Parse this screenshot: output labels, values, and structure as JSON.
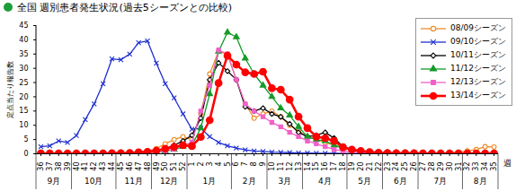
{
  "chart_data": {
    "type": "line",
    "title": "全国 週別患者発生状況(過去5シーズンとの比較)",
    "y_label": "定点当たり報告数",
    "x_label": "週",
    "categories": [
      "36",
      "37",
      "38",
      "39",
      "40",
      "41",
      "42",
      "43",
      "44",
      "45",
      "46",
      "47",
      "48",
      "49",
      "50",
      "51",
      "52",
      "1",
      "2",
      "3",
      "4",
      "5",
      "6",
      "7",
      "8",
      "9",
      "10",
      "11",
      "12",
      "13",
      "14",
      "15",
      "16",
      "17",
      "18",
      "19",
      "20",
      "21",
      "22",
      "23",
      "24",
      "25",
      "26",
      "27",
      "28",
      "29",
      "30",
      "31",
      "32",
      "33",
      "34",
      "35"
    ],
    "x_groups": [
      "9月",
      "9月",
      "9月",
      "9月",
      "10月",
      "10月",
      "10月",
      "10月",
      "10月",
      "11月",
      "11月",
      "11月",
      "11月",
      "12月",
      "12月",
      "12月",
      "12月",
      "1月",
      "1月",
      "1月",
      "1月",
      "1月",
      "2月",
      "2月",
      "2月",
      "2月",
      "3月",
      "3月",
      "3月",
      "3月",
      "4月",
      "4月",
      "4月",
      "4月",
      "4月",
      "5月",
      "5月",
      "5月",
      "5月",
      "6月",
      "6月",
      "6月",
      "6月",
      "7月",
      "7月",
      "7月",
      "7月",
      "7月",
      "8月",
      "8月",
      "8月",
      "8月"
    ],
    "series": [
      {
        "name": "08/09シーズン",
        "color": "#f08c28",
        "marker": "circle-open",
        "values": [
          0.1,
          0.1,
          0.1,
          0.1,
          0.1,
          0.1,
          0.2,
          0.2,
          0.3,
          0.4,
          0.5,
          0.7,
          1.0,
          1.8,
          3.5,
          5.0,
          6.0,
          5.0,
          14.0,
          28.0,
          36.0,
          35.0,
          26.0,
          17.5,
          12.5,
          14.0,
          15.0,
          13.0,
          10.0,
          8.0,
          6.0,
          5.0,
          4.0,
          3.0,
          2.0,
          1.2,
          0.8,
          0.5,
          0.4,
          0.3,
          0.2,
          0.2,
          0.2,
          0.2,
          0.2,
          0.3,
          0.4,
          0.6,
          1.0,
          1.5,
          2.5,
          2.4
        ]
      },
      {
        "name": "09/10シーズン",
        "color": "#1f2fd0",
        "marker": "times",
        "values": [
          2.5,
          2.8,
          4.5,
          4.0,
          6.4,
          12.0,
          17.5,
          24.6,
          33.3,
          33.0,
          35.0,
          39.0,
          39.6,
          31.8,
          24.6,
          19.6,
          14.0,
          8.6,
          9.0,
          6.0,
          4.0,
          2.8,
          2.0,
          1.4,
          1.0,
          0.8,
          0.6,
          0.5,
          0.4,
          0.3,
          0.3,
          0.2,
          0.2,
          0.2,
          0.1,
          0.1,
          0.1,
          0.1,
          0.1,
          0.1,
          0.1,
          0.1,
          0.1,
          0.1,
          0.1,
          0.1,
          0.1,
          0.1,
          0.1,
          0.1,
          0.1,
          0.1
        ]
      },
      {
        "name": "10/11シーズン",
        "color": "#000000",
        "marker": "diamond-open",
        "values": [
          0.1,
          0.1,
          0.1,
          0.1,
          0.1,
          0.1,
          0.1,
          0.2,
          0.2,
          0.2,
          0.3,
          0.4,
          0.6,
          1.0,
          1.8,
          3.0,
          4.5,
          6.5,
          12.5,
          26.0,
          31.9,
          29.0,
          26.0,
          16.5,
          15.0,
          16.0,
          14.0,
          13.0,
          10.5,
          7.5,
          6.0,
          6.5,
          7.5,
          5.5,
          2.5,
          1.5,
          1.0,
          0.6,
          0.4,
          0.3,
          0.2,
          0.2,
          0.1,
          0.1,
          0.1,
          0.1,
          0.1,
          0.1,
          0.1,
          0.1,
          0.1,
          0.1
        ]
      },
      {
        "name": "11/12シーズン",
        "color": "#149a28",
        "marker": "triangle",
        "values": [
          0.1,
          0.1,
          0.1,
          0.1,
          0.1,
          0.1,
          0.1,
          0.1,
          0.1,
          0.2,
          0.2,
          0.3,
          0.4,
          0.6,
          0.9,
          1.5,
          2.5,
          3.0,
          9.0,
          21.0,
          35.9,
          42.6,
          41.0,
          33.5,
          28.0,
          24.0,
          20.0,
          16.0,
          13.5,
          9.5,
          6.0,
          5.0,
          4.5,
          3.0,
          2.0,
          1.2,
          0.8,
          0.5,
          0.4,
          0.3,
          0.2,
          0.2,
          0.1,
          0.1,
          0.1,
          0.1,
          0.1,
          0.1,
          0.1,
          0.1,
          0.1,
          0.1
        ]
      },
      {
        "name": "12/13シーズン",
        "color": "#f060c8",
        "marker": "square",
        "values": [
          0.1,
          0.1,
          0.1,
          0.1,
          0.1,
          0.1,
          0.1,
          0.1,
          0.1,
          0.1,
          0.2,
          0.3,
          0.4,
          0.6,
          1.0,
          1.6,
          3.0,
          4.0,
          15.0,
          24.0,
          36.4,
          35.0,
          26.0,
          17.5,
          15.0,
          13.0,
          11.0,
          9.5,
          7.5,
          6.0,
          4.5,
          3.5,
          2.5,
          1.5,
          1.0,
          0.6,
          0.4,
          0.3,
          0.2,
          0.2,
          0.1,
          0.1,
          0.1,
          0.1,
          0.1,
          0.1,
          0.1,
          0.1,
          0.1,
          0.1,
          0.1,
          0.1
        ]
      },
      {
        "name": "13/14シーズン",
        "color": "#ff0000",
        "marker": "circle",
        "values": [
          0.1,
          0.1,
          0.1,
          0.1,
          0.1,
          0.1,
          0.1,
          0.1,
          0.2,
          0.2,
          0.3,
          0.5,
          0.7,
          1.1,
          1.8,
          2.4,
          3.0,
          2.7,
          5.9,
          11.8,
          24.8,
          34.4,
          31.3,
          28.6,
          28.0,
          28.8,
          23.0,
          22.5,
          19.0,
          13.0,
          9.0,
          6.0,
          5.5,
          4.5,
          2.3,
          1.5,
          1.0,
          0.6,
          0.4,
          0.3,
          0.2,
          0.2,
          0.2,
          0.1,
          0.1,
          0.1,
          0.1,
          0.1,
          0.1,
          0.1,
          0.1,
          0.1
        ]
      }
    ],
    "ylim": [
      0,
      45
    ],
    "yticks": [
      0,
      5,
      10,
      15,
      20,
      25,
      30,
      35,
      40,
      45
    ],
    "legend": "top-right"
  }
}
